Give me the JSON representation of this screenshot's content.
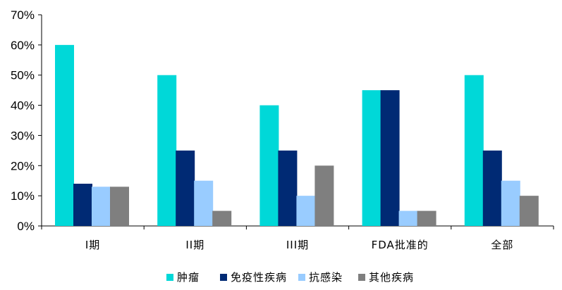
{
  "chart_data": {
    "type": "bar",
    "categories": [
      "I期",
      "II期",
      "III期",
      "FDA批准的",
      "全部"
    ],
    "series": [
      {
        "name": "肿瘤",
        "color": "#00d8d8",
        "values": [
          60,
          50,
          40,
          45,
          50
        ]
      },
      {
        "name": "免疫性疾病",
        "color": "#002a74",
        "values": [
          14,
          25,
          25,
          45,
          25
        ]
      },
      {
        "name": "抗感染",
        "color": "#99ccff",
        "values": [
          13,
          15,
          10,
          5,
          15
        ]
      },
      {
        "name": "其他疾病",
        "color": "#7f7f7f",
        "values": [
          13,
          5,
          20,
          5,
          10
        ]
      }
    ],
    "yticks": [
      "0%",
      "10%",
      "20%",
      "30%",
      "40%",
      "50%",
      "60%",
      "70%"
    ],
    "ylim": [
      0,
      70
    ],
    "legend_position": "bottom",
    "grid": false
  }
}
